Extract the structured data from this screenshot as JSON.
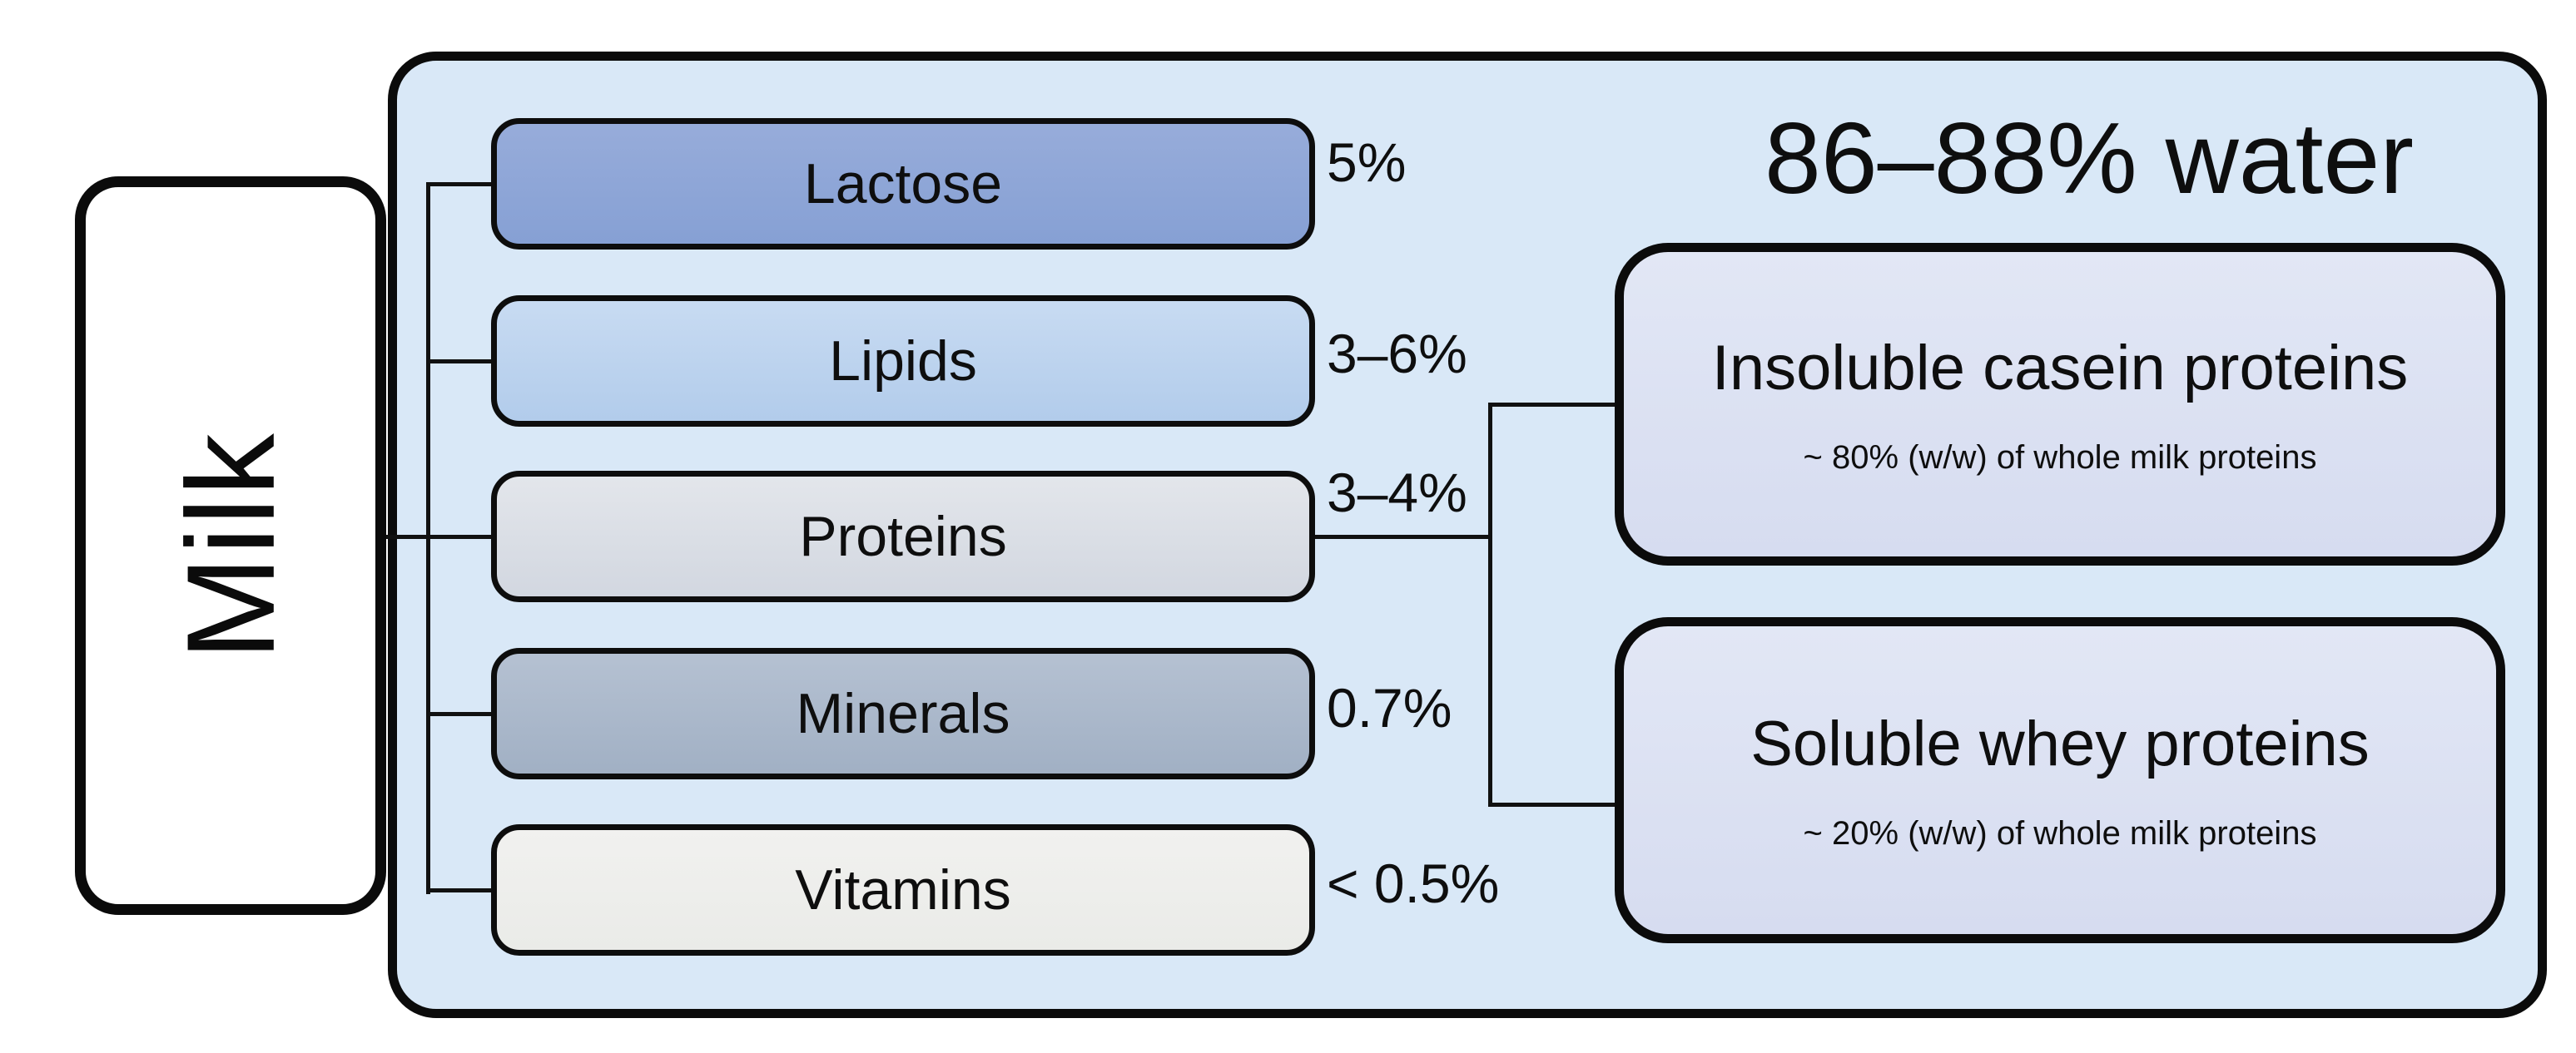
{
  "diagram": {
    "root": {
      "label": "Milk"
    },
    "water_note": "86–88% water",
    "components": [
      {
        "label": "Lactose",
        "percent": "5%",
        "color": "#8ea7d9"
      },
      {
        "label": "Lipids",
        "percent": "3–6%",
        "color": "#bcd4ee"
      },
      {
        "label": "Proteins",
        "percent": "3–4%",
        "color": "#d9dde4"
      },
      {
        "label": "Minerals",
        "percent": "0.7%",
        "color": "#aab8cb"
      },
      {
        "label": "Vitamins",
        "percent": "< 0.5%",
        "color": "#efefed"
      }
    ],
    "protein_subtypes": [
      {
        "label": "Insoluble casein proteins",
        "note": "~ 80% (w/w) of whole milk proteins"
      },
      {
        "label": "Soluble whey proteins",
        "note": "~ 20% (w/w) of whole milk proteins"
      }
    ],
    "colors": {
      "panel_fill": "#d9e8f7",
      "protein_subtype_fill": "#dce2f3",
      "outline": "#0b0b0b",
      "background": "#ffffff"
    }
  }
}
